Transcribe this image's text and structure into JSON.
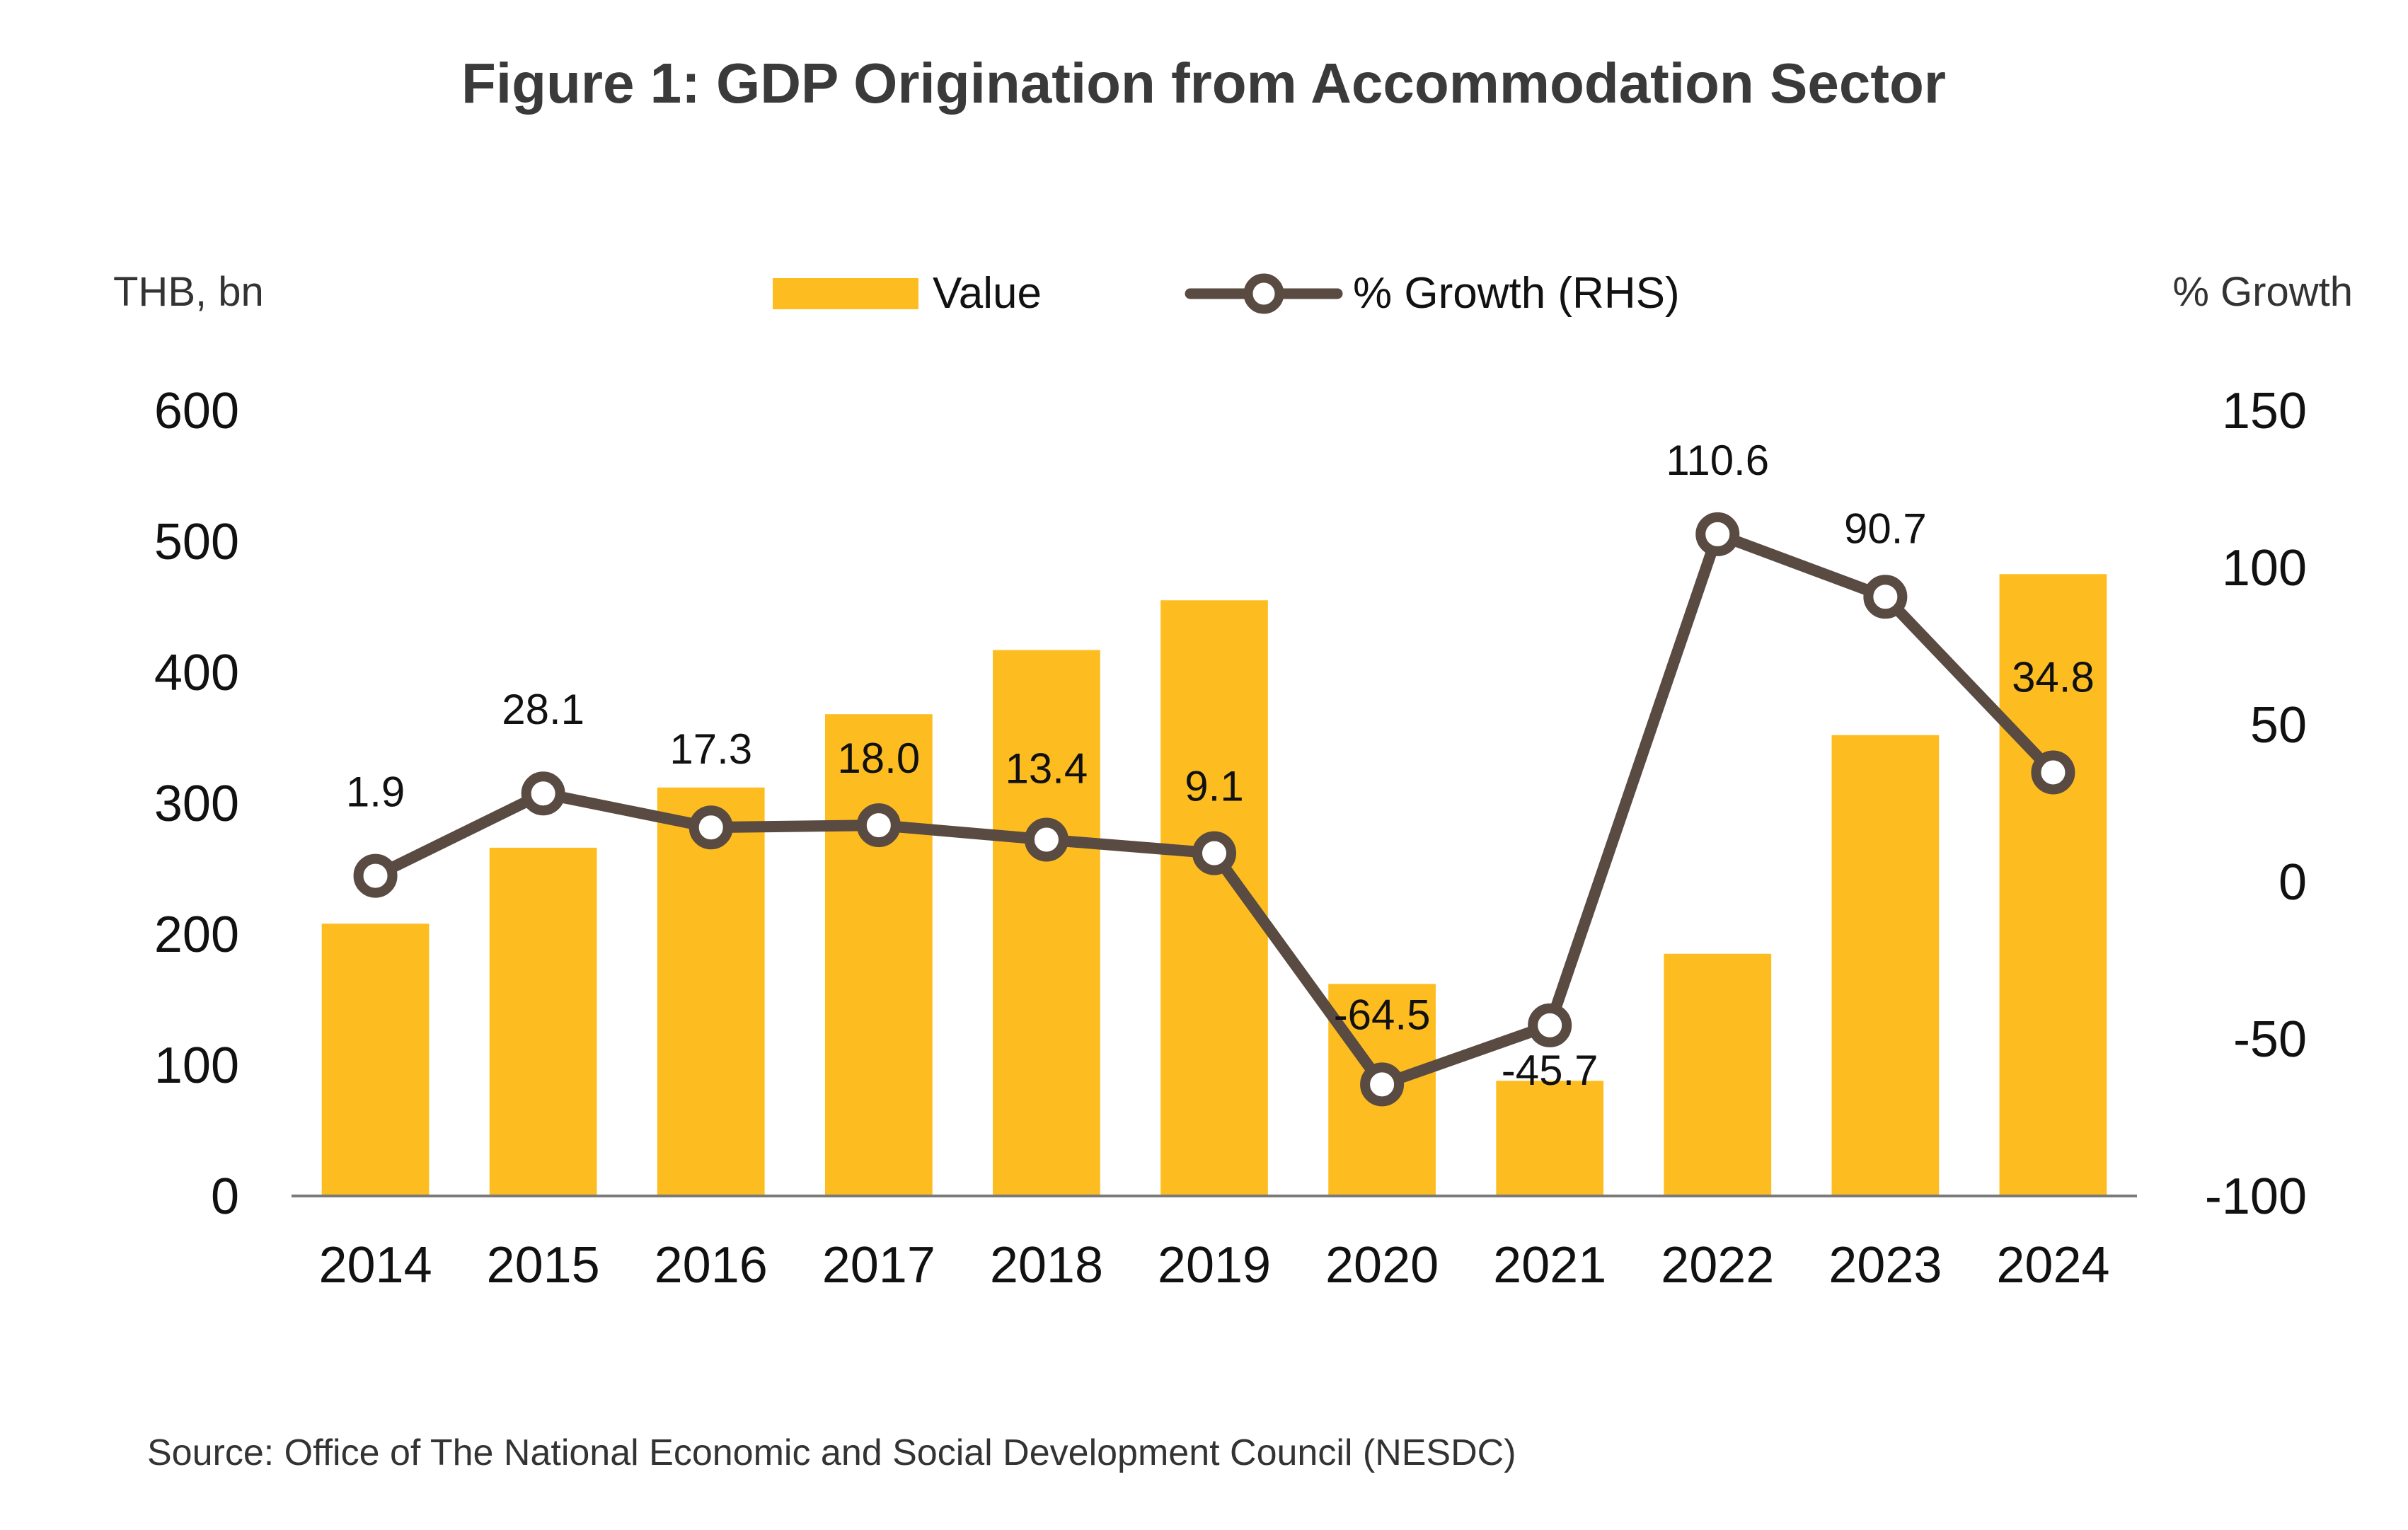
{
  "chart_data": {
    "type": "bar+line",
    "title": "Figure 1: GDP Origination from Accommodation Sector",
    "categories": [
      "2014",
      "2015",
      "2016",
      "2017",
      "2018",
      "2019",
      "2020",
      "2021",
      "2022",
      "2023",
      "2024"
    ],
    "series": [
      {
        "name": "Value",
        "type": "bar",
        "axis": "left",
        "color": "#FDBD21",
        "values": [
          208,
          266,
          312,
          368,
          417,
          455,
          162,
          88,
          185,
          352,
          475
        ]
      },
      {
        "name": "% Growth (RHS)",
        "type": "line",
        "axis": "right",
        "color": "#594A42",
        "values": [
          1.9,
          28.1,
          17.3,
          18.0,
          13.4,
          9.1,
          -64.5,
          -45.7,
          110.6,
          90.7,
          34.8
        ],
        "labels": [
          "1.9",
          "28.1",
          "17.3",
          "18.0",
          "13.4",
          "9.1",
          "-64.5",
          "-45.7",
          "110.6",
          "90.7",
          "34.8"
        ]
      }
    ],
    "y_left": {
      "label": "THB, bn",
      "ylim": [
        0,
        600
      ],
      "ticks": [
        "0",
        "100",
        "200",
        "300",
        "400",
        "500",
        "600"
      ]
    },
    "y_right": {
      "label": "% Growth",
      "ylim": [
        -100,
        150
      ],
      "ticks": [
        "-100",
        "-50",
        "0",
        "50",
        "100",
        "150"
      ]
    },
    "legend_position": "top-center",
    "source": "Source: Office of The National Economic and Social Development Council (NESDC)"
  }
}
